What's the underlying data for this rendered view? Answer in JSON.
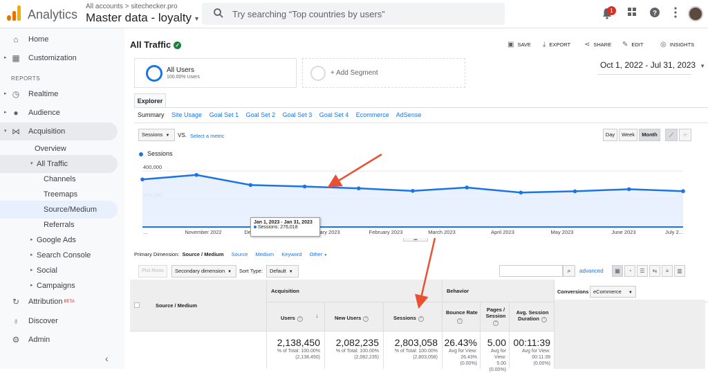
{
  "topbar": {
    "app_name": "Analytics",
    "breadcrumb": "All accounts > sitechecker.pro",
    "property": "Master data - loyalty",
    "search_placeholder": "Try searching “Top countries by users”",
    "notification_count": "1",
    "icons": [
      "analytics-logo-icon",
      "search-icon",
      "notifications-icon",
      "apps-icon",
      "help-icon",
      "more-vert-icon",
      "account-avatar"
    ],
    "logo_colors": [
      "#f9ab00",
      "#e37400",
      "#e37400"
    ]
  },
  "sidebar": {
    "home": "Home",
    "customization": "Customization",
    "reports_header": "REPORTS",
    "realtime": "Realtime",
    "audience": "Audience",
    "acquisition": "Acquisition",
    "overview": "Overview",
    "all_traffic": "All Traffic",
    "channels": "Channels",
    "treemaps": "Treemaps",
    "source_medium": "Source/Medium",
    "referrals": "Referrals",
    "google_ads": "Google Ads",
    "search_console": "Search Console",
    "social": "Social",
    "campaigns": "Campaigns",
    "attribution": "Attribution",
    "beta": "BETA",
    "discover": "Discover",
    "admin": "Admin"
  },
  "report": {
    "title": "All Traffic",
    "actions": {
      "save": "SAVE",
      "export": "EXPORT",
      "share": "SHARE",
      "edit": "EDIT",
      "insights": "INSIGHTS"
    },
    "segment": {
      "name": "All Users",
      "sub": "100.00% Users",
      "add": "+ Add Segment"
    },
    "date_range": "Oct 1, 2022 - Jul 31, 2023",
    "explorer_tab": "Explorer",
    "subtabs": [
      "Summary",
      "Site Usage",
      "Goal Set 1",
      "Goal Set 2",
      "Goal Set 3",
      "Goal Set 4",
      "Ecommerce",
      "AdSense"
    ],
    "metric_select": "Sessions",
    "vs": "VS.",
    "select_metric": "Select a metric",
    "granularity": [
      "Day",
      "Week",
      "Month"
    ],
    "granularity_selected": "Month"
  },
  "chart_data": {
    "type": "line",
    "series": [
      {
        "name": "Sessions",
        "values": [
          340000,
          372000,
          300000,
          289000,
          276018,
          258000,
          282000,
          246000,
          255000,
          270000,
          256000
        ]
      }
    ],
    "x_tick_labels": [
      "...",
      "November 2022",
      "December 2022",
      "January 2023",
      "February 2023",
      "March 2023",
      "April 2023",
      "May 2023",
      "June 2023",
      "July 2..."
    ],
    "y_tick_labels": [
      "400,000",
      "200,000"
    ],
    "ylim": [
      0,
      450000
    ],
    "color": "#1a73e8",
    "tooltip": {
      "title": "Jan 1, 2023 - Jan 31, 2023",
      "text": "Sessions: 276,018"
    }
  },
  "table_controls": {
    "primary_dimension_label": "Primary Dimension:",
    "primary_dimension": "Source / Medium",
    "dimension_links": [
      "Source",
      "Medium",
      "Keyword",
      "Other"
    ],
    "plot_rows": "Plot Rows",
    "secondary_dimension": "Secondary dimension",
    "sort_type_label": "Sort Type:",
    "sort_type": "Default",
    "advanced": "advanced"
  },
  "table": {
    "dimension_header": "Source / Medium",
    "group_acquisition": "Acquisition",
    "group_behavior": "Behavior",
    "group_conversions": "Conversions",
    "conversions_select": "eCommerce",
    "columns": [
      {
        "label": "Users",
        "value": "2,138,450",
        "sub1": "% of Total: 100.00%",
        "sub2": "(2,138,450)"
      },
      {
        "label": "New Users",
        "value": "2,082,235",
        "sub1": "% of Total: 100.00%",
        "sub2": "(2,082,235)"
      },
      {
        "label": "Sessions",
        "value": "2,803,058",
        "sub1": "% of Total: 100.00%",
        "sub2": "(2,803,058)"
      },
      {
        "label": "Bounce Rate",
        "value": "26.43%",
        "sub1": "Avg for View:",
        "sub2": "26.43%",
        "sub3": "(0.00%)"
      },
      {
        "label": "Pages / Session",
        "value": "5.00",
        "sub1": "Avg for View:",
        "sub2": "5.00",
        "sub3": "(0.00%)"
      },
      {
        "label": "Avg. Session Duration",
        "value": "00:11:39",
        "sub1": "Avg for View:",
        "sub2": "00:11:39",
        "sub3": "(0.00%)"
      }
    ]
  },
  "annotation_color": "#e8502f"
}
